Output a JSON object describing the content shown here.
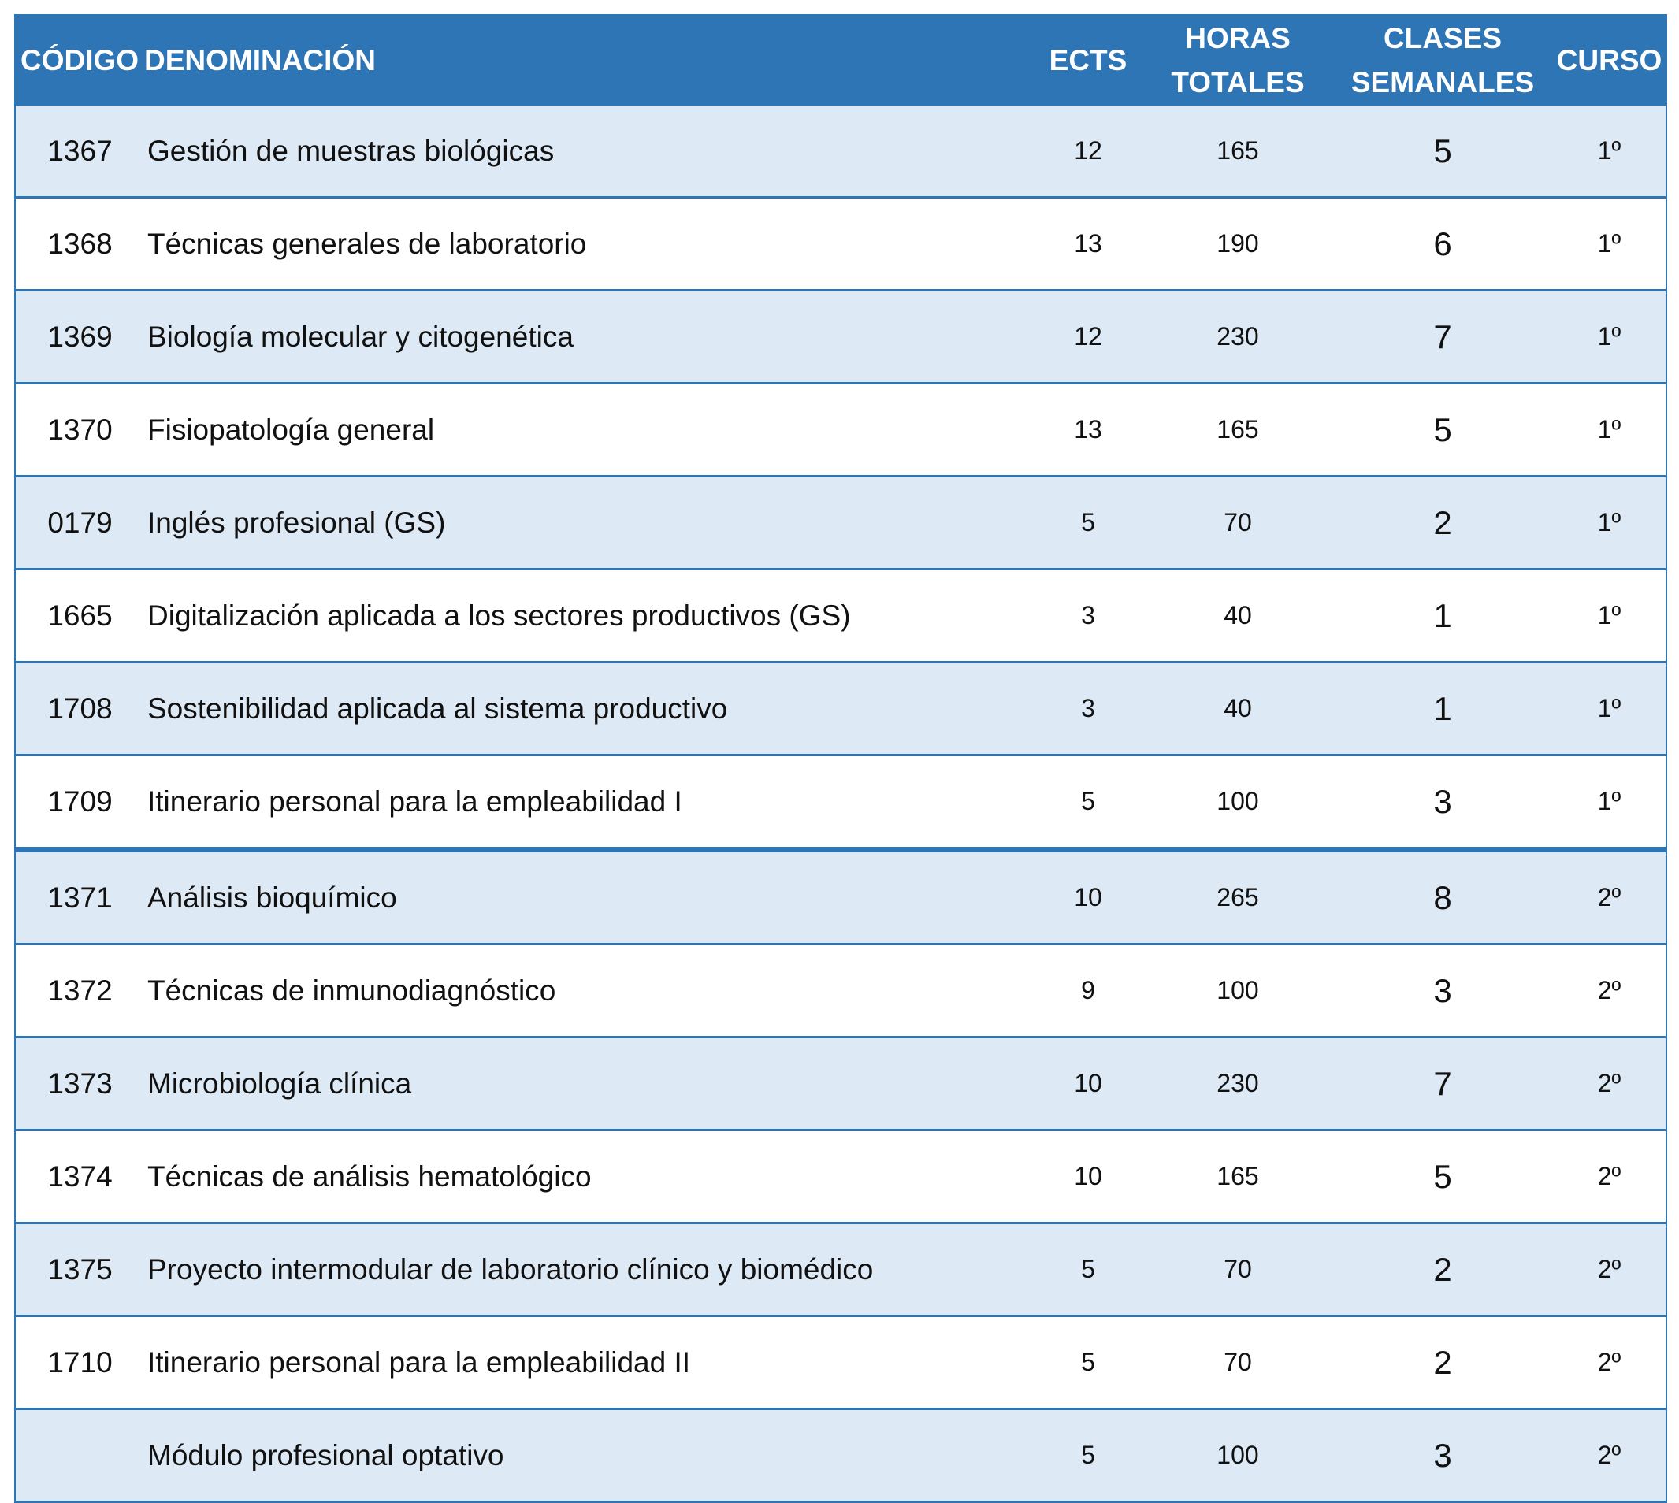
{
  "headers": {
    "codigo": "CÓDIGO",
    "denominacion": "DENOMINACIÓN",
    "ects": "ECTS",
    "horas": "HORAS TOTALES",
    "clases": "CLASES SEMANALES",
    "curso": "CURSO"
  },
  "rows": [
    {
      "codigo": "1367",
      "denominacion": "Gestión de muestras biológicas",
      "ects": "12",
      "horas": "165",
      "clases": "5",
      "curso": "1º"
    },
    {
      "codigo": "1368",
      "denominacion": "Técnicas generales de laboratorio",
      "ects": "13",
      "horas": "190",
      "clases": "6",
      "curso": "1º"
    },
    {
      "codigo": "1369",
      "denominacion": "Biología molecular y citogenética",
      "ects": "12",
      "horas": "230",
      "clases": "7",
      "curso": "1º"
    },
    {
      "codigo": "1370",
      "denominacion": "Fisiopatología general",
      "ects": "13",
      "horas": "165",
      "clases": "5",
      "curso": "1º"
    },
    {
      "codigo": "0179",
      "denominacion": "Inglés profesional (GS)",
      "ects": "5",
      "horas": "70",
      "clases": "2",
      "curso": "1º"
    },
    {
      "codigo": "1665",
      "denominacion": "Digitalización aplicada a los sectores productivos (GS)",
      "ects": "3",
      "horas": "40",
      "clases": "1",
      "curso": "1º"
    },
    {
      "codigo": "1708",
      "denominacion": "Sostenibilidad aplicada al sistema productivo",
      "ects": "3",
      "horas": "40",
      "clases": "1",
      "curso": "1º"
    },
    {
      "codigo": "1709",
      "denominacion": "Itinerario personal para la empleabilidad I",
      "ects": "5",
      "horas": "100",
      "clases": "3",
      "curso": "1º"
    },
    {
      "codigo": "1371",
      "denominacion": "Análisis bioquímico",
      "ects": "10",
      "horas": "265",
      "clases": "8",
      "curso": "2º"
    },
    {
      "codigo": "1372",
      "denominacion": "Técnicas de inmunodiagnóstico",
      "ects": "9",
      "horas": "100",
      "clases": "3",
      "curso": "2º"
    },
    {
      "codigo": "1373",
      "denominacion": "Microbiología clínica",
      "ects": "10",
      "horas": "230",
      "clases": "7",
      "curso": "2º"
    },
    {
      "codigo": "1374",
      "denominacion": "Técnicas de análisis hematológico",
      "ects": "10",
      "horas": "165",
      "clases": "5",
      "curso": "2º"
    },
    {
      "codigo": "1375",
      "denominacion": "Proyecto intermodular de laboratorio clínico y biomédico",
      "ects": "5",
      "horas": "70",
      "clases": "2",
      "curso": "2º"
    },
    {
      "codigo": "1710",
      "denominacion": "Itinerario personal para la empleabilidad II",
      "ects": "5",
      "horas": "70",
      "clases": "2",
      "curso": "2º"
    },
    {
      "codigo": "",
      "denominacion": "Módulo profesional optativo",
      "ects": "5",
      "horas": "100",
      "clases": "3",
      "curso": "2º"
    }
  ]
}
